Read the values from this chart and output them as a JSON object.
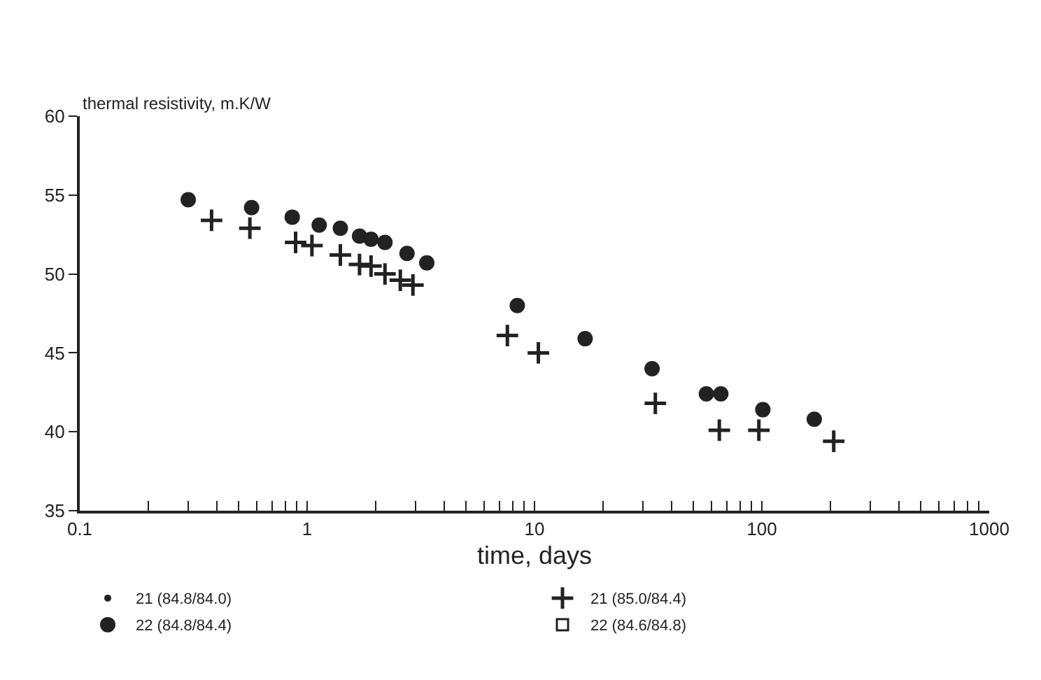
{
  "chart_data": {
    "type": "scatter",
    "ylabel": "thermal resistivity, m.K/W",
    "xlabel": "time, days",
    "log": "x",
    "xlim": [
      0.1,
      1000
    ],
    "ylim": [
      35,
      60
    ],
    "xticks": [
      0.1,
      {
        "value": 0.2,
        "label": null
      },
      {
        "value": 0.3,
        "label": null
      },
      {
        "value": 0.4,
        "label": null
      },
      {
        "value": 0.5,
        "label": null
      },
      {
        "value": 0.6,
        "label": null
      },
      {
        "value": 0.7,
        "label": null
      },
      {
        "value": 0.8,
        "label": null
      },
      {
        "value": 0.9,
        "label": null
      },
      1,
      {
        "value": 2,
        "label": null
      },
      {
        "value": 3,
        "label": null
      },
      {
        "value": 4,
        "label": null
      },
      {
        "value": 5,
        "label": null
      },
      {
        "value": 6,
        "label": null
      },
      {
        "value": 7,
        "label": null
      },
      {
        "value": 8,
        "label": null
      },
      {
        "value": 9,
        "label": null
      },
      10,
      {
        "value": 20,
        "label": null
      },
      {
        "value": 30,
        "label": null
      },
      {
        "value": 40,
        "label": null
      },
      {
        "value": 50,
        "label": null
      },
      {
        "value": 60,
        "label": null
      },
      {
        "value": 70,
        "label": null
      },
      {
        "value": 80,
        "label": null
      },
      {
        "value": 90,
        "label": null
      },
      100,
      {
        "value": 200,
        "label": null
      },
      {
        "value": 300,
        "label": null
      },
      {
        "value": 400,
        "label": null
      },
      {
        "value": 500,
        "label": null
      },
      {
        "value": 600,
        "label": null
      },
      {
        "value": 700,
        "label": null
      },
      {
        "value": 800,
        "label": null
      },
      {
        "value": 900,
        "label": null
      },
      1000
    ],
    "yticks": [
      35,
      40,
      45,
      50,
      55,
      60
    ],
    "grid": false,
    "legend": "bottom",
    "series": [
      {
        "name": "21 (84.8/84.0)",
        "color": "#222222",
        "marker": "dot"
      },
      {
        "name": "21 (85.0/84.4)",
        "color": "#222222",
        "marker": "cross",
        "x": [
          0.38,
          0.56,
          0.89,
          1.05,
          1.4,
          1.7,
          1.91,
          2.2,
          2.57,
          2.92,
          7.6,
          10.4,
          34,
          65,
          97,
          207
        ],
        "values": [
          53.4,
          52.9,
          52.0,
          51.8,
          51.2,
          50.6,
          50.5,
          50.0,
          49.6,
          49.3,
          46.1,
          45.0,
          41.8,
          40.1,
          40.1,
          39.4
        ]
      },
      {
        "name": "22 (84.8/84.4)",
        "color": "#222222",
        "marker": "circle",
        "x": [
          0.3,
          0.57,
          0.86,
          1.13,
          1.4,
          1.7,
          1.91,
          2.2,
          2.75,
          3.36,
          8.4,
          16.7,
          32.9,
          57,
          66,
          101,
          170
        ],
        "values": [
          54.7,
          54.2,
          53.6,
          53.1,
          52.9,
          52.4,
          52.2,
          52.0,
          51.3,
          50.7,
          48.0,
          45.9,
          44.0,
          42.4,
          42.4,
          41.4,
          40.8
        ]
      },
      {
        "name": "22 (84.6/84.8)",
        "color": "#222222",
        "marker": "square-open"
      }
    ]
  }
}
